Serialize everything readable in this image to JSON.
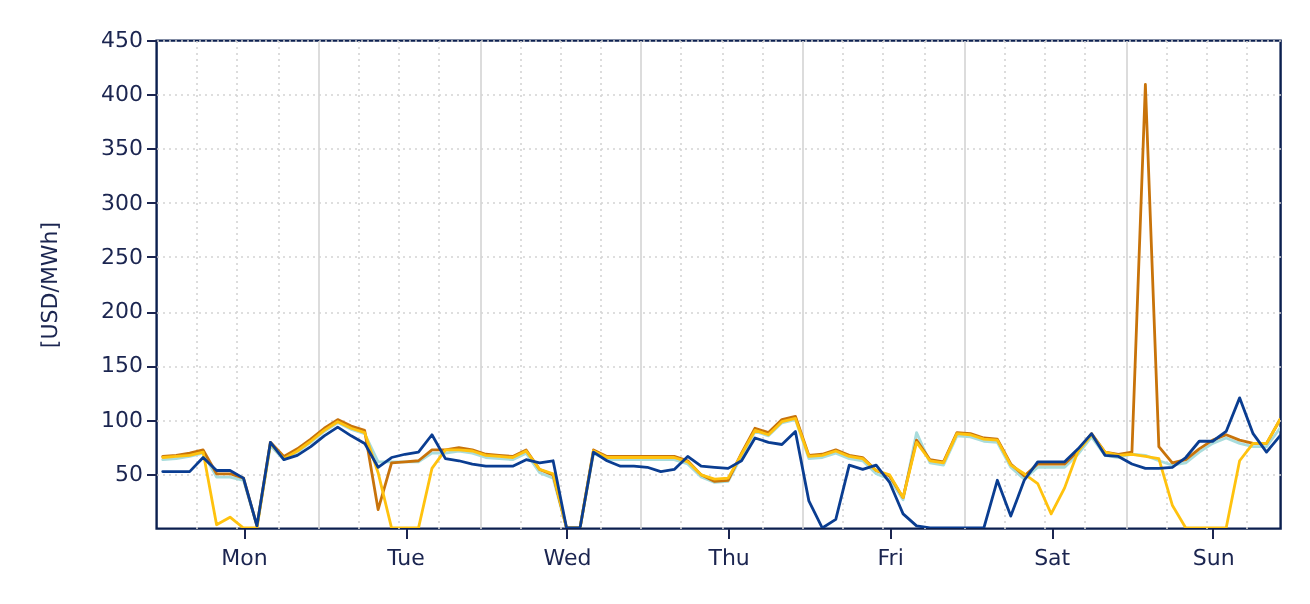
{
  "chart_data": {
    "type": "line",
    "ylabel": "[USD/MWh]",
    "categories": [
      null,
      null,
      null,
      null,
      null,
      null,
      "Mon",
      null,
      null,
      null,
      null,
      null,
      null,
      null,
      null,
      null,
      null,
      null,
      "Tue",
      null,
      null,
      null,
      null,
      null,
      null,
      null,
      null,
      null,
      null,
      null,
      "Wed",
      null,
      null,
      null,
      null,
      null,
      null,
      null,
      null,
      null,
      null,
      null,
      "Thu",
      null,
      null,
      null,
      null,
      null,
      null,
      null,
      null,
      null,
      null,
      null,
      "Fri",
      null,
      null,
      null,
      null,
      null,
      null,
      null,
      null,
      null,
      null,
      null,
      "Sat",
      null,
      null,
      null,
      null,
      null,
      null,
      null,
      null,
      null,
      null,
      null,
      "Sun",
      null,
      null,
      null,
      null,
      null
    ],
    "ylim": [
      0,
      450
    ],
    "yticks": [
      50,
      100,
      150,
      200,
      250,
      300,
      350,
      400,
      450
    ],
    "grid": true,
    "marker": "none",
    "line_style": "solid",
    "series": [
      {
        "color": "#a8dcdc",
        "values": [
          63,
          64,
          66,
          69,
          47,
          47,
          44,
          2,
          76,
          63,
          70,
          79,
          89,
          97,
          91,
          87,
          61,
          61,
          61,
          61,
          69,
          69,
          71,
          69,
          65,
          64,
          63,
          69,
          51,
          46,
          0,
          0,
          69,
          63,
          63,
          63,
          63,
          63,
          63,
          59,
          47,
          42,
          43,
          66,
          89,
          85,
          97,
          100,
          64,
          65,
          69,
          64,
          62,
          50,
          45,
          26,
          88,
          60,
          58,
          85,
          84,
          80,
          79,
          56,
          45,
          56,
          56,
          56,
          68,
          84,
          67,
          65,
          68,
          67,
          62,
          58,
          60,
          70,
          78,
          83,
          78,
          75,
          75,
          92
        ]
      },
      {
        "color": "#c8730a",
        "values": [
          66,
          67,
          69,
          72,
          50,
          50,
          46,
          2,
          79,
          66,
          73,
          82,
          92,
          100,
          94,
          90,
          17,
          60,
          61,
          62,
          72,
          72,
          74,
          72,
          68,
          67,
          66,
          72,
          54,
          49,
          0,
          0,
          72,
          66,
          66,
          66,
          66,
          66,
          66,
          62,
          49,
          43,
          44,
          69,
          92,
          88,
          100,
          103,
          67,
          68,
          72,
          67,
          65,
          53,
          48,
          28,
          81,
          63,
          61,
          88,
          87,
          83,
          82,
          59,
          48,
          59,
          59,
          59,
          71,
          87,
          70,
          68,
          70,
          409,
          75,
          60,
          63,
          73,
          81,
          86,
          81,
          78,
          78,
          100
        ]
      },
      {
        "color": "#ffc20e",
        "values": [
          65,
          66,
          67,
          70,
          3,
          10,
          0,
          0,
          78,
          64,
          71,
          80,
          90,
          98,
          92,
          88,
          51,
          0,
          0,
          0,
          55,
          72,
          72,
          71,
          67,
          66,
          65,
          71,
          54,
          50,
          0,
          0,
          71,
          65,
          65,
          65,
          65,
          65,
          65,
          61,
          49,
          45,
          46,
          68,
          90,
          86,
          98,
          101,
          66,
          67,
          71,
          66,
          64,
          53,
          49,
          28,
          79,
          62,
          60,
          87,
          86,
          82,
          81,
          58,
          50,
          41,
          13,
          37,
          71,
          86,
          70,
          67,
          68,
          66,
          64,
          21,
          0,
          0,
          0,
          0,
          62,
          78,
          78,
          100
        ]
      },
      {
        "color": "#0a3d91",
        "values": [
          52,
          52,
          52,
          65,
          53,
          53,
          46,
          2,
          79,
          63,
          67,
          75,
          85,
          93,
          85,
          78,
          56,
          65,
          68,
          70,
          86,
          64,
          62,
          59,
          57,
          57,
          57,
          63,
          60,
          62,
          0,
          0,
          70,
          62,
          57,
          57,
          56,
          52,
          54,
          66,
          57,
          56,
          55,
          62,
          83,
          79,
          77,
          89,
          25,
          0,
          8,
          58,
          54,
          58,
          42,
          13,
          2,
          0,
          0,
          0,
          0,
          0,
          44,
          11,
          44,
          61,
          61,
          61,
          73,
          87,
          67,
          66,
          59,
          55,
          55,
          56,
          65,
          80,
          80,
          89,
          120,
          87,
          70,
          85
        ]
      }
    ]
  }
}
